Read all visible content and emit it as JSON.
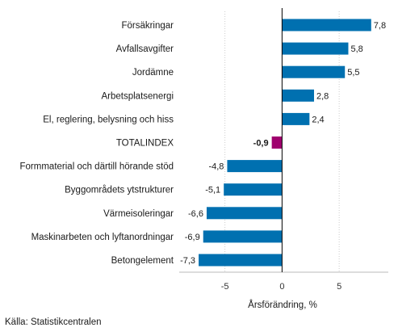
{
  "chart_data": {
    "type": "bar",
    "orientation": "horizontal",
    "categories": [
      "Försäkringar",
      "Avfallsavgifter",
      "Jordämne",
      "Arbetsplatsenergi",
      "El, reglering, belysning och hiss",
      "TOTALINDEX",
      "Formmaterial och därtill hörande stöd",
      "Byggområdets ytstrukturer",
      "Värmeisoleringar",
      "Maskinarbeten och lyftanordningar",
      "Betongelement"
    ],
    "values": [
      7.8,
      5.8,
      5.5,
      2.8,
      2.4,
      -0.9,
      -4.8,
      -5.1,
      -6.6,
      -6.9,
      -7.3
    ],
    "value_labels": [
      "7,8",
      "5,8",
      "5,5",
      "2,8",
      "2,4",
      "-0,9",
      "-4,8",
      "-5,1",
      "-6,6",
      "-6,9",
      "-7,3"
    ],
    "highlight_category": "TOTALINDEX",
    "xlabel": "Årsförändring, %",
    "xlim": [
      -9,
      9.3
    ],
    "xticks": [
      -5,
      0,
      5
    ],
    "xtick_labels": [
      "-5",
      "0",
      "5"
    ],
    "grid": "vertical",
    "colors": {
      "bar": "#0070b0",
      "highlight": "#a0006e",
      "grid": "#cccccc"
    }
  },
  "footer": {
    "source": "Källa: Statistikcentralen"
  }
}
